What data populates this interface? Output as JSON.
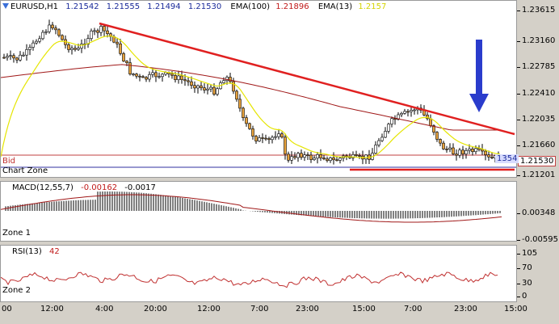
{
  "header": {
    "symbol": "EURUSD,H1",
    "open": "1.21542",
    "high": "1.21555",
    "low": "1.21494",
    "close": "1.21530",
    "ema100_label": "EMA(100)",
    "ema100_value": "1.21896",
    "ema13_label": "EMA(13)",
    "ema13_value": "1.2157"
  },
  "main": {
    "bid_label": "Bid",
    "zone_label": "Chart Zone",
    "bid_price_tag": "1.21530",
    "small_tag": "1354",
    "y_ticks": [
      "1.23615",
      "1.23160",
      "1.22785",
      "1.22410",
      "1.22035",
      "1.21660",
      "1.21201"
    ]
  },
  "macd": {
    "label": "MACD(12,55,7)",
    "value1": "-0.00162",
    "value2": "-0.0017",
    "zone_label": "Zone 1",
    "y_ticks": [
      "0.00348",
      "-0.00595"
    ]
  },
  "rsi": {
    "label": "RSI(13)",
    "value": "42",
    "zone_label": "Zone 2",
    "y_ticks": [
      "105",
      "70",
      "30",
      "0"
    ]
  },
  "x_ticks": [
    "00",
    "12:00",
    "4:00",
    "20:00",
    "12:00",
    "7:00",
    "23:00",
    "15:00",
    "7:00",
    "23:00",
    "15:00"
  ],
  "colors": {
    "candle_up": "#000000",
    "candle_down": "#e8a23c",
    "ema13": "#e5e500",
    "ema100": "#a01818",
    "trendline": "#e02020",
    "arrow": "#2a3ccc",
    "bid_line": "#c04040",
    "zone_line": "#3030a0",
    "macd_signal": "#a01818",
    "rsi_line": "#c03030"
  }
}
